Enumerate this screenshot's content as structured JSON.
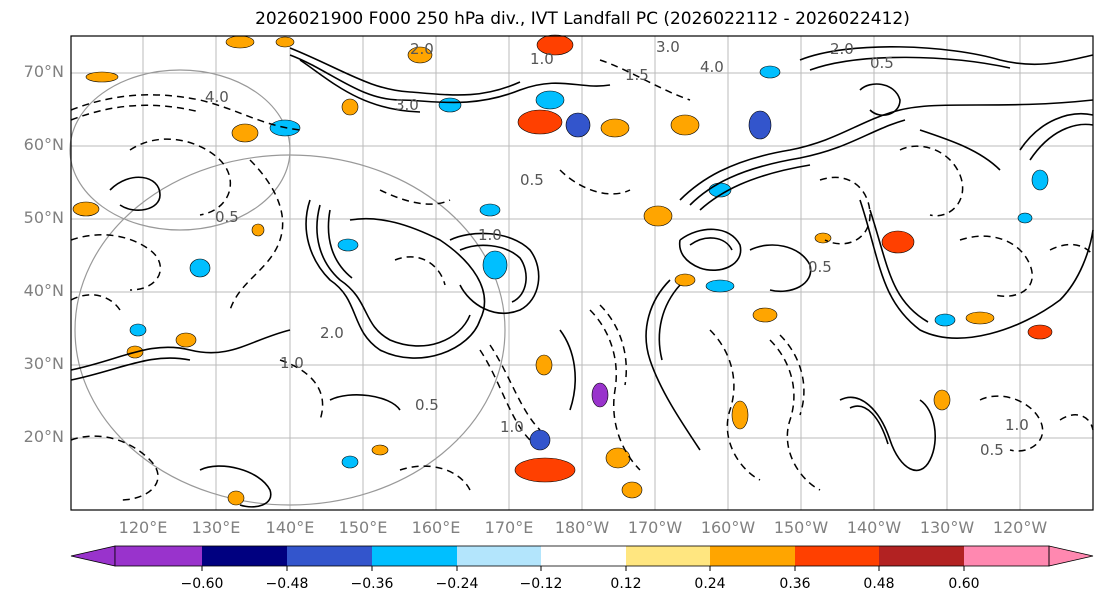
{
  "title": "2026021900 F000 250 hPa div., IVT Landfall PC (2026022112 - 2026022412)",
  "lat_labels": [
    "70°N",
    "60°N",
    "50°N",
    "40°N",
    "30°N",
    "20°N"
  ],
  "lon_labels": [
    "120°E",
    "130°E",
    "140°E",
    "150°E",
    "160°E",
    "170°E",
    "180°W",
    "170°W",
    "160°W",
    "150°W",
    "140°W",
    "130°W",
    "120°W"
  ],
  "colorbar": {
    "ticks": [
      "−0.60",
      "−0.48",
      "−0.36",
      "−0.24",
      "−0.12",
      "0.12",
      "0.24",
      "0.36",
      "0.48",
      "0.60"
    ],
    "colors": [
      "#9933cc",
      "#000080",
      "#3355cc",
      "#00bfff",
      "#b3e5fc",
      "#ffffff",
      "#ffe680",
      "#ffa500",
      "#ff4000",
      "#b22222",
      "#ff88b0"
    ]
  },
  "contour_labels": [
    "3.0",
    "4.0",
    "2.0",
    "0.5",
    "1.0",
    "1.5",
    "4.0",
    "3.0",
    "2.0",
    "0.5",
    "1.0",
    "0.5",
    "0.5",
    "1.0",
    "0.5",
    "2.0",
    "1.0",
    "0.5",
    "1.0"
  ]
}
